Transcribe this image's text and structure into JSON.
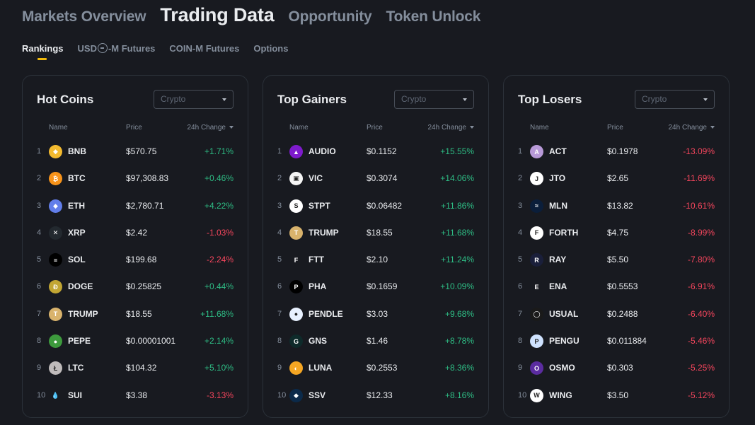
{
  "top_tabs": [
    "Markets Overview",
    "Trading Data",
    "Opportunity",
    "Token Unlock"
  ],
  "sub_tabs": {
    "rankings": "Rankings",
    "usd_prefix": "USD",
    "usd_suffix": "-M Futures",
    "coin_m": "COIN-M Futures",
    "options": "Options"
  },
  "headers": {
    "name": "Name",
    "price": "Price",
    "change": "24h Change"
  },
  "colors": {
    "up": "#2ebd85",
    "down": "#f6465d",
    "accent": "#f0b90b"
  },
  "cards": [
    {
      "title": "Hot Coins",
      "filter": "Crypto",
      "rows": [
        {
          "rank": "1",
          "symbol": "BNB",
          "price": "$570.75",
          "change": "+1.71%",
          "dir": "up",
          "logo_color": "#f3ba2f",
          "logo_text": "◆"
        },
        {
          "rank": "2",
          "symbol": "BTC",
          "price": "$97,308.83",
          "change": "+0.46%",
          "dir": "up",
          "logo_color": "#f7931a",
          "logo_text": "₿"
        },
        {
          "rank": "3",
          "symbol": "ETH",
          "price": "$2,780.71",
          "change": "+4.22%",
          "dir": "up",
          "logo_color": "#627eea",
          "logo_text": "◆"
        },
        {
          "rank": "4",
          "symbol": "XRP",
          "price": "$2.42",
          "change": "-1.03%",
          "dir": "down",
          "logo_color": "#23292f",
          "logo_text": "✕"
        },
        {
          "rank": "5",
          "symbol": "SOL",
          "price": "$199.68",
          "change": "-2.24%",
          "dir": "down",
          "logo_color": "#000000",
          "logo_text": "≡"
        },
        {
          "rank": "6",
          "symbol": "DOGE",
          "price": "$0.25825",
          "change": "+0.44%",
          "dir": "up",
          "logo_color": "#c2a633",
          "logo_text": "Ð"
        },
        {
          "rank": "7",
          "symbol": "TRUMP",
          "price": "$18.55",
          "change": "+11.68%",
          "dir": "up",
          "logo_color": "#d9b36c",
          "logo_text": "T"
        },
        {
          "rank": "8",
          "symbol": "PEPE",
          "price": "$0.00001001",
          "change": "+2.14%",
          "dir": "up",
          "logo_color": "#3d9a3d",
          "logo_text": "●"
        },
        {
          "rank": "9",
          "symbol": "LTC",
          "price": "$104.32",
          "change": "+5.10%",
          "dir": "up",
          "logo_color": "#bfbbbb",
          "logo_text": "Ł"
        },
        {
          "rank": "10",
          "symbol": "SUI",
          "price": "$3.38",
          "change": "-3.13%",
          "dir": "down",
          "logo_color": "#181a20",
          "logo_text": "💧"
        }
      ]
    },
    {
      "title": "Top Gainers",
      "filter": "Crypto",
      "rows": [
        {
          "rank": "1",
          "symbol": "AUDIO",
          "price": "$0.1152",
          "change": "+15.55%",
          "dir": "up",
          "logo_color": "#7e1bcc",
          "logo_text": "▲"
        },
        {
          "rank": "2",
          "symbol": "VIC",
          "price": "$0.3074",
          "change": "+14.06%",
          "dir": "up",
          "logo_color": "#f5f5f5",
          "logo_text": "▣"
        },
        {
          "rank": "3",
          "symbol": "STPT",
          "price": "$0.06482",
          "change": "+11.86%",
          "dir": "up",
          "logo_color": "#ffffff",
          "logo_text": "S"
        },
        {
          "rank": "4",
          "symbol": "TRUMP",
          "price": "$18.55",
          "change": "+11.68%",
          "dir": "up",
          "logo_color": "#d9b36c",
          "logo_text": "T"
        },
        {
          "rank": "5",
          "symbol": "FTT",
          "price": "$2.10",
          "change": "+11.24%",
          "dir": "up",
          "logo_color": "#181a20",
          "logo_text": "F"
        },
        {
          "rank": "6",
          "symbol": "PHA",
          "price": "$0.1659",
          "change": "+10.09%",
          "dir": "up",
          "logo_color": "#000000",
          "logo_text": "P"
        },
        {
          "rank": "7",
          "symbol": "PENDLE",
          "price": "$3.03",
          "change": "+9.68%",
          "dir": "up",
          "logo_color": "#e8f1ff",
          "logo_text": "●"
        },
        {
          "rank": "8",
          "symbol": "GNS",
          "price": "$1.46",
          "change": "+8.78%",
          "dir": "up",
          "logo_color": "#0e2a2a",
          "logo_text": "G"
        },
        {
          "rank": "9",
          "symbol": "LUNA",
          "price": "$0.2553",
          "change": "+8.36%",
          "dir": "up",
          "logo_color": "#f5a623",
          "logo_text": "◐"
        },
        {
          "rank": "10",
          "symbol": "SSV",
          "price": "$12.33",
          "change": "+8.16%",
          "dir": "up",
          "logo_color": "#0b2a4a",
          "logo_text": "◆"
        }
      ]
    },
    {
      "title": "Top Losers",
      "filter": "Crypto",
      "rows": [
        {
          "rank": "1",
          "symbol": "ACT",
          "price": "$0.1978",
          "change": "-13.09%",
          "dir": "down",
          "logo_color": "#b89ad8",
          "logo_text": "A"
        },
        {
          "rank": "2",
          "symbol": "JTO",
          "price": "$2.65",
          "change": "-11.69%",
          "dir": "down",
          "logo_color": "#ffffff",
          "logo_text": "J"
        },
        {
          "rank": "3",
          "symbol": "MLN",
          "price": "$13.82",
          "change": "-10.61%",
          "dir": "down",
          "logo_color": "#0b1e3a",
          "logo_text": "≈"
        },
        {
          "rank": "4",
          "symbol": "FORTH",
          "price": "$4.75",
          "change": "-8.99%",
          "dir": "down",
          "logo_color": "#ffffff",
          "logo_text": "F"
        },
        {
          "rank": "5",
          "symbol": "RAY",
          "price": "$5.50",
          "change": "-7.80%",
          "dir": "down",
          "logo_color": "#1a1f3a",
          "logo_text": "R"
        },
        {
          "rank": "6",
          "symbol": "ENA",
          "price": "$0.5553",
          "change": "-6.91%",
          "dir": "down",
          "logo_color": "#181a20",
          "logo_text": "E"
        },
        {
          "rank": "7",
          "symbol": "USUAL",
          "price": "$0.2488",
          "change": "-6.40%",
          "dir": "down",
          "logo_color": "#1a1a1a",
          "logo_text": "◯"
        },
        {
          "rank": "8",
          "symbol": "PENGU",
          "price": "$0.011884",
          "change": "-5.46%",
          "dir": "down",
          "logo_color": "#cfe3ff",
          "logo_text": "P"
        },
        {
          "rank": "9",
          "symbol": "OSMO",
          "price": "$0.303",
          "change": "-5.25%",
          "dir": "down",
          "logo_color": "#5b2ca0",
          "logo_text": "O"
        },
        {
          "rank": "10",
          "symbol": "WING",
          "price": "$3.50",
          "change": "-5.12%",
          "dir": "down",
          "logo_color": "#ffffff",
          "logo_text": "W"
        }
      ]
    }
  ]
}
